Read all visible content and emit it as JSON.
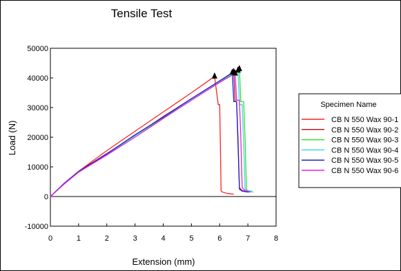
{
  "chart_data": {
    "type": "line",
    "title": "Tensile Test",
    "xlabel": "Extension (mm)",
    "ylabel": "Load (N)",
    "xlim": [
      0,
      8
    ],
    "ylim": [
      -10000,
      50000
    ],
    "xticks": [
      0,
      1,
      2,
      3,
      4,
      5,
      6,
      7,
      8
    ],
    "yticks": [
      -10000,
      0,
      10000,
      20000,
      30000,
      40000,
      50000
    ],
    "xtick_labels": [
      "0",
      "1",
      "2",
      "3",
      "4",
      "5",
      "6",
      "7",
      "8"
    ],
    "ytick_labels": [
      "-10000",
      "0",
      "10000",
      "20000",
      "30000",
      "40000",
      "50000"
    ],
    "legend": {
      "title": "Specimen Name",
      "placement": "right"
    },
    "series": [
      {
        "name": "CB N 550 Wax 90-1",
        "color": "#ff2020",
        "x": [
          0,
          0.5,
          1,
          2,
          3,
          4,
          5,
          5.82,
          5.95,
          6.0,
          6.02,
          6.05,
          6.1,
          6.3,
          6.5
        ],
        "y": [
          0,
          4500,
          8500,
          15500,
          22000,
          28500,
          35000,
          40500,
          31000,
          31000,
          20000,
          2000,
          1500,
          1000,
          800
        ],
        "peak": [
          5.82,
          40500
        ]
      },
      {
        "name": "CB N 550 Wax 90-2",
        "color": "#b02020",
        "x": [
          0,
          0.5,
          1,
          2,
          3,
          4,
          5,
          6,
          6.5,
          6.55,
          6.6,
          6.65,
          6.7,
          6.8,
          7.0
        ],
        "y": [
          0,
          4500,
          8500,
          14500,
          20500,
          27000,
          33000,
          39000,
          42000,
          32000,
          32000,
          20000,
          3000,
          2000,
          1500
        ],
        "peak": [
          6.5,
          42000
        ]
      },
      {
        "name": "CB N 550 Wax 90-3",
        "color": "#30e030",
        "x": [
          0,
          0.5,
          1,
          2,
          3,
          4,
          5,
          6,
          6.7,
          6.75,
          6.85,
          6.9,
          6.95,
          7.0,
          7.2
        ],
        "y": [
          0,
          4300,
          8300,
          14200,
          20500,
          26500,
          32500,
          38500,
          43000,
          32000,
          32000,
          20000,
          2500,
          2000,
          1500
        ],
        "peak": [
          6.7,
          43000
        ]
      },
      {
        "name": "CB N 550 Wax 90-4",
        "color": "#40d8e8",
        "x": [
          0,
          0.5,
          1,
          2,
          3,
          4,
          5,
          6,
          6.65,
          6.7,
          6.8,
          6.85,
          6.9,
          7.0,
          7.15
        ],
        "y": [
          0,
          4400,
          8400,
          14300,
          20600,
          26800,
          33000,
          39000,
          42500,
          31000,
          31000,
          18000,
          2500,
          2000,
          1800
        ],
        "peak": [
          6.65,
          42500
        ]
      },
      {
        "name": "CB N 550 Wax 90-5",
        "color": "#2020d0",
        "x": [
          0,
          0.5,
          1,
          2,
          3,
          4,
          5,
          6,
          6.45,
          6.5,
          6.6,
          6.65,
          6.7,
          6.8,
          7.05
        ],
        "y": [
          0,
          4500,
          8400,
          14400,
          20800,
          26800,
          33000,
          39000,
          41800,
          32000,
          32000,
          18000,
          2500,
          1800,
          1500
        ],
        "peak": [
          6.45,
          41800
        ]
      },
      {
        "name": "CB N 550 Wax 90-6",
        "color": "#e020e0",
        "x": [
          0,
          0.5,
          1,
          2,
          3,
          4,
          5,
          6,
          6.55,
          6.6,
          6.7,
          6.75,
          6.8,
          6.9,
          7.1
        ],
        "y": [
          0,
          4300,
          8200,
          14000,
          20000,
          26300,
          32500,
          38500,
          41500,
          32500,
          32500,
          20000,
          3000,
          2000,
          1500
        ],
        "peak": [
          6.55,
          41500
        ]
      }
    ]
  }
}
